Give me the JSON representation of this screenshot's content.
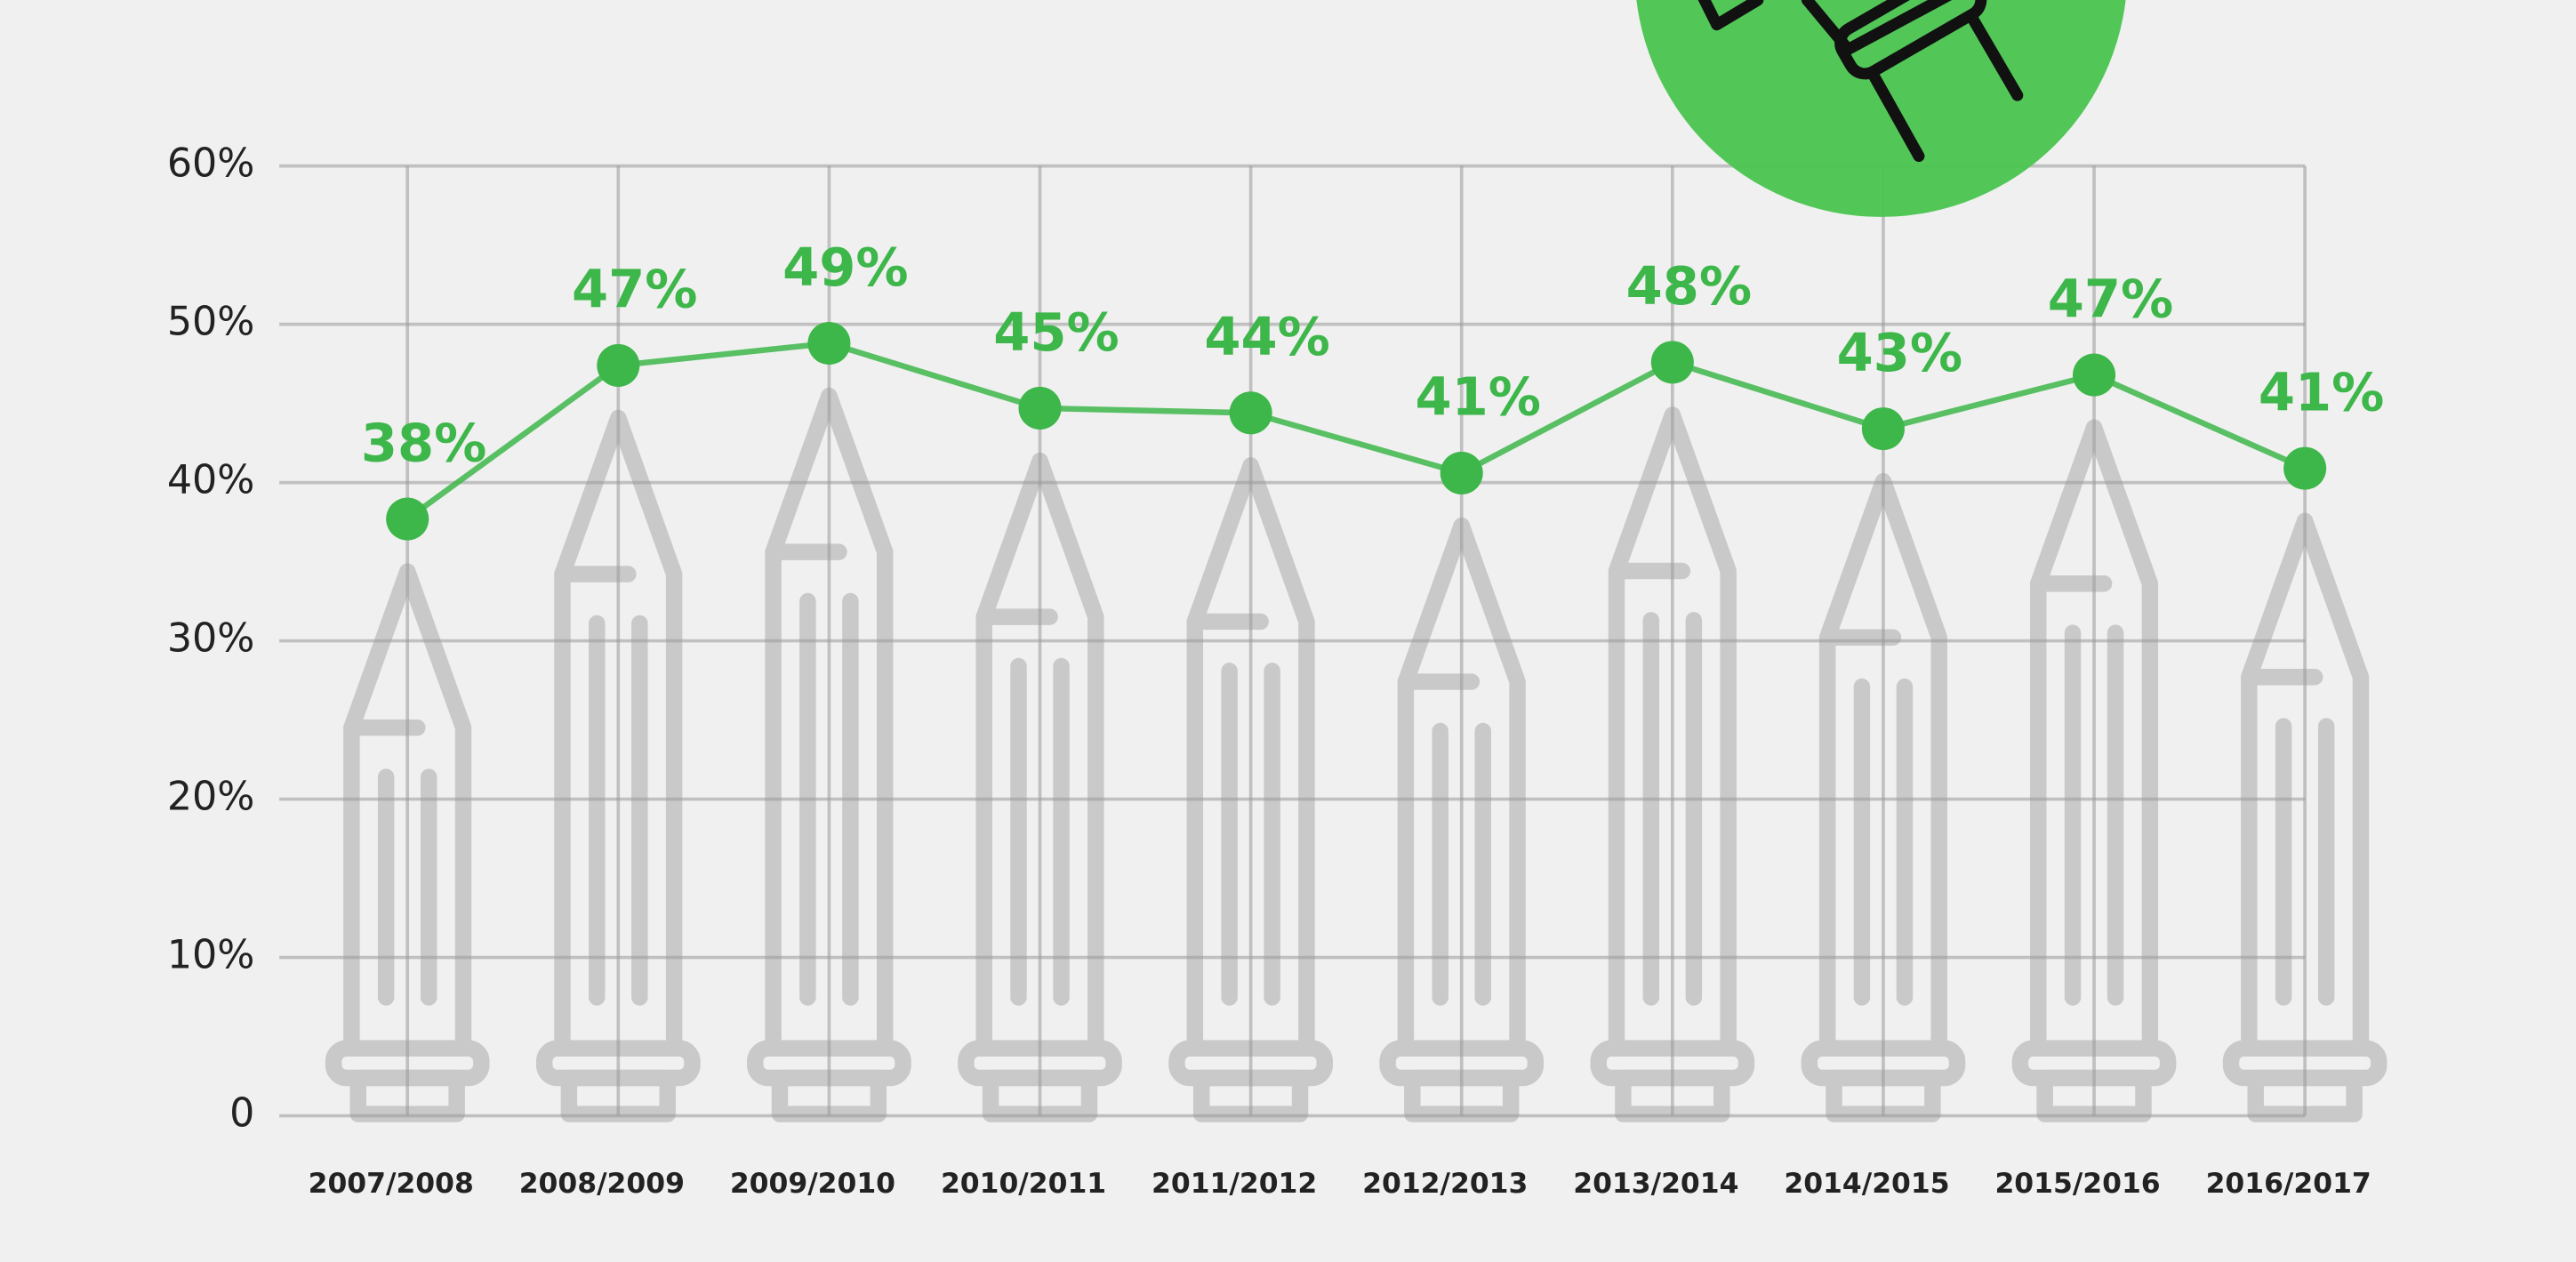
{
  "chart_data": {
    "type": "line",
    "categories": [
      "2007/2008",
      "2008/2009",
      "2009/2010",
      "2010/2011",
      "2011/2012",
      "2012/2013",
      "2013/2014",
      "2014/2015",
      "2015/2016",
      "2016/2017"
    ],
    "values": [
      37.7,
      47.4,
      48.8,
      44.7,
      44.4,
      40.6,
      47.6,
      43.4,
      46.8,
      40.9
    ],
    "value_labels": [
      "38%",
      "47%",
      "49%",
      "45%",
      "44%",
      "41%",
      "48%",
      "43%",
      "47%",
      "41%"
    ],
    "color": "#3db64a",
    "ylim": [
      0,
      60
    ],
    "yticks": [
      0,
      {
        "value": 10,
        "label": "10%"
      },
      {
        "value": 20,
        "label": "20%"
      },
      {
        "value": 30,
        "label": "30%"
      },
      {
        "value": 40,
        "label": "40%"
      },
      {
        "value": 50,
        "label": "50%"
      },
      {
        "value": 60,
        "label": "60%"
      }
    ],
    "grid": true
  }
}
